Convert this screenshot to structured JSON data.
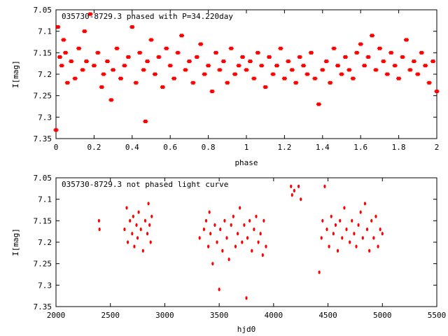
{
  "chart_data": [
    {
      "type": "scatter",
      "title": "035730-8729.3 phased with P=34.220day",
      "xlabel": "phase",
      "ylabel": "I[mag]",
      "xlim": [
        0,
        2
      ],
      "ylim": [
        7.05,
        7.35
      ],
      "y_inverted": true,
      "x_ticks": [
        "0",
        "0.2",
        "0.4",
        "0.6",
        "0.8",
        "1",
        "1.2",
        "1.4",
        "1.6",
        "1.8",
        "2"
      ],
      "y_ticks": [
        "7.05",
        "7.1",
        "7.15",
        "7.2",
        "7.25",
        "7.3",
        "7.35"
      ],
      "marker_color": "#ff0000",
      "series": [
        {
          "marker": "star",
          "points": [
            [
              0.0,
              7.33
            ],
            [
              0.01,
              7.09
            ],
            [
              0.02,
              7.16
            ],
            [
              0.03,
              7.18
            ],
            [
              0.04,
              7.12
            ],
            [
              0.05,
              7.15
            ],
            [
              0.06,
              7.22
            ],
            [
              0.08,
              7.17
            ],
            [
              0.1,
              7.21
            ],
            [
              0.12,
              7.14
            ],
            [
              0.14,
              7.19
            ],
            [
              0.15,
              7.1
            ],
            [
              0.16,
              7.17
            ],
            [
              0.18,
              7.06
            ],
            [
              0.2,
              7.18
            ],
            [
              0.22,
              7.15
            ],
            [
              0.24,
              7.23
            ],
            [
              0.25,
              7.2
            ],
            [
              0.27,
              7.17
            ],
            [
              0.29,
              7.26
            ],
            [
              0.3,
              7.19
            ],
            [
              0.32,
              7.14
            ],
            [
              0.34,
              7.21
            ],
            [
              0.36,
              7.18
            ],
            [
              0.38,
              7.16
            ],
            [
              0.4,
              7.09
            ],
            [
              0.42,
              7.22
            ],
            [
              0.44,
              7.15
            ],
            [
              0.46,
              7.19
            ],
            [
              0.47,
              7.31
            ],
            [
              0.48,
              7.17
            ],
            [
              0.5,
              7.12
            ],
            [
              0.52,
              7.2
            ],
            [
              0.54,
              7.16
            ],
            [
              0.56,
              7.23
            ],
            [
              0.58,
              7.14
            ],
            [
              0.6,
              7.18
            ],
            [
              0.62,
              7.21
            ],
            [
              0.64,
              7.15
            ],
            [
              0.66,
              7.11
            ],
            [
              0.68,
              7.19
            ],
            [
              0.7,
              7.17
            ],
            [
              0.72,
              7.22
            ],
            [
              0.74,
              7.16
            ],
            [
              0.76,
              7.13
            ],
            [
              0.78,
              7.2
            ],
            [
              0.8,
              7.18
            ],
            [
              0.82,
              7.24
            ],
            [
              0.84,
              7.15
            ],
            [
              0.86,
              7.19
            ],
            [
              0.88,
              7.17
            ],
            [
              0.9,
              7.22
            ],
            [
              0.92,
              7.14
            ],
            [
              0.94,
              7.2
            ],
            [
              0.96,
              7.18
            ],
            [
              0.98,
              7.16
            ],
            [
              1.0,
              7.19
            ],
            [
              1.02,
              7.17
            ],
            [
              1.04,
              7.21
            ],
            [
              1.06,
              7.15
            ],
            [
              1.08,
              7.18
            ],
            [
              1.1,
              7.23
            ],
            [
              1.12,
              7.16
            ],
            [
              1.14,
              7.2
            ],
            [
              1.16,
              7.18
            ],
            [
              1.18,
              7.14
            ],
            [
              1.2,
              7.21
            ],
            [
              1.22,
              7.17
            ],
            [
              1.24,
              7.19
            ],
            [
              1.26,
              7.22
            ],
            [
              1.28,
              7.16
            ],
            [
              1.3,
              7.18
            ],
            [
              1.32,
              7.2
            ],
            [
              1.34,
              7.15
            ],
            [
              1.36,
              7.21
            ],
            [
              1.38,
              7.27
            ],
            [
              1.4,
              7.19
            ],
            [
              1.42,
              7.17
            ],
            [
              1.44,
              7.22
            ],
            [
              1.46,
              7.14
            ],
            [
              1.48,
              7.18
            ],
            [
              1.5,
              7.2
            ],
            [
              1.52,
              7.16
            ],
            [
              1.54,
              7.19
            ],
            [
              1.56,
              7.21
            ],
            [
              1.58,
              7.15
            ],
            [
              1.6,
              7.13
            ],
            [
              1.62,
              7.18
            ],
            [
              1.64,
              7.16
            ],
            [
              1.66,
              7.11
            ],
            [
              1.68,
              7.19
            ],
            [
              1.7,
              7.14
            ],
            [
              1.72,
              7.17
            ],
            [
              1.74,
              7.2
            ],
            [
              1.76,
              7.15
            ],
            [
              1.78,
              7.18
            ],
            [
              1.8,
              7.21
            ],
            [
              1.82,
              7.16
            ],
            [
              1.84,
              7.12
            ],
            [
              1.86,
              7.19
            ],
            [
              1.88,
              7.17
            ],
            [
              1.9,
              7.2
            ],
            [
              1.92,
              7.15
            ],
            [
              1.94,
              7.18
            ],
            [
              1.96,
              7.22
            ],
            [
              1.98,
              7.17
            ],
            [
              2.0,
              7.24
            ]
          ]
        }
      ]
    },
    {
      "type": "scatter",
      "title": "035730-8729.3 not phased light curve",
      "xlabel": "hjd0",
      "ylabel": "I[mag]",
      "xlim": [
        2000,
        5500
      ],
      "ylim": [
        7.05,
        7.35
      ],
      "y_inverted": true,
      "x_ticks": [
        "2000",
        "2500",
        "3000",
        "3500",
        "4000",
        "4500",
        "5000",
        "5500"
      ],
      "y_ticks": [
        "7.05",
        "7.1",
        "7.15",
        "7.2",
        "7.25",
        "7.3",
        "7.35"
      ],
      "marker_color": "#ff0000",
      "series": [
        {
          "marker": "dot",
          "points": [
            [
              2395,
              7.15
            ],
            [
              2400,
              7.17
            ],
            [
              2630,
              7.17
            ],
            [
              2650,
              7.12
            ],
            [
              2660,
              7.2
            ],
            [
              2680,
              7.15
            ],
            [
              2700,
              7.18
            ],
            [
              2710,
              7.14
            ],
            [
              2720,
              7.21
            ],
            [
              2740,
              7.16
            ],
            [
              2750,
              7.19
            ],
            [
              2760,
              7.13
            ],
            [
              2780,
              7.17
            ],
            [
              2800,
              7.22
            ],
            [
              2820,
              7.15
            ],
            [
              2840,
              7.18
            ],
            [
              2850,
              7.11
            ],
            [
              2860,
              7.16
            ],
            [
              2870,
              7.2
            ],
            [
              2880,
              7.14
            ],
            [
              3320,
              7.19
            ],
            [
              3360,
              7.17
            ],
            [
              3380,
              7.15
            ],
            [
              3400,
              7.21
            ],
            [
              3410,
              7.13
            ],
            [
              3420,
              7.18
            ],
            [
              3440,
              7.25
            ],
            [
              3460,
              7.16
            ],
            [
              3480,
              7.2
            ],
            [
              3500,
              7.31
            ],
            [
              3510,
              7.17
            ],
            [
              3530,
              7.22
            ],
            [
              3550,
              7.15
            ],
            [
              3570,
              7.19
            ],
            [
              3590,
              7.24
            ],
            [
              3610,
              7.16
            ],
            [
              3630,
              7.14
            ],
            [
              3650,
              7.21
            ],
            [
              3670,
              7.18
            ],
            [
              3690,
              7.12
            ],
            [
              3710,
              7.2
            ],
            [
              3730,
              7.16
            ],
            [
              3750,
              7.33
            ],
            [
              3760,
              7.19
            ],
            [
              3780,
              7.15
            ],
            [
              3800,
              7.22
            ],
            [
              3820,
              7.17
            ],
            [
              3840,
              7.14
            ],
            [
              3860,
              7.2
            ],
            [
              3880,
              7.18
            ],
            [
              3900,
              7.23
            ],
            [
              3910,
              7.15
            ],
            [
              3930,
              7.21
            ],
            [
              4160,
              7.07
            ],
            [
              4170,
              7.09
            ],
            [
              4190,
              7.08
            ],
            [
              4230,
              7.07
            ],
            [
              4250,
              7.1
            ],
            [
              4420,
              7.27
            ],
            [
              4440,
              7.19
            ],
            [
              4450,
              7.15
            ],
            [
              4470,
              7.07
            ],
            [
              4490,
              7.17
            ],
            [
              4510,
              7.21
            ],
            [
              4530,
              7.14
            ],
            [
              4550,
              7.18
            ],
            [
              4570,
              7.16
            ],
            [
              4590,
              7.22
            ],
            [
              4610,
              7.15
            ],
            [
              4630,
              7.19
            ],
            [
              4650,
              7.12
            ],
            [
              4670,
              7.17
            ],
            [
              4700,
              7.2
            ],
            [
              4720,
              7.15
            ],
            [
              4740,
              7.18
            ],
            [
              4760,
              7.21
            ],
            [
              4780,
              7.16
            ],
            [
              4800,
              7.13
            ],
            [
              4820,
              7.19
            ],
            [
              4840,
              7.11
            ],
            [
              4860,
              7.17
            ],
            [
              4880,
              7.22
            ],
            [
              4900,
              7.15
            ],
            [
              4920,
              7.19
            ],
            [
              4940,
              7.14
            ],
            [
              4960,
              7.21
            ],
            [
              4980,
              7.17
            ],
            [
              5000,
              7.18
            ]
          ]
        }
      ]
    }
  ]
}
